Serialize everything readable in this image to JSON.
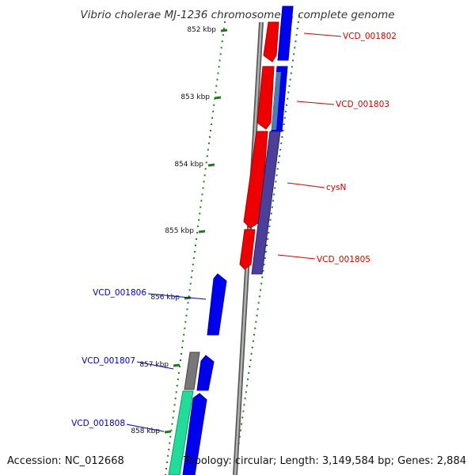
{
  "title": "Vibrio cholerae MJ-1236 chromosome 1, complete genome",
  "footer": {
    "accession": "Accession: NC_012668",
    "summary": "Topology: circular; Length: 3,149,584 bp; Genes: 2,884"
  },
  "ticks": [
    "852 kbp",
    "853 kbp",
    "854 kbp",
    "855 kbp",
    "856 kbp",
    "857 kbp",
    "858 kbp"
  ],
  "gene_labels": [
    {
      "text": "VCD_001802",
      "color": "#cc0000"
    },
    {
      "text": "VCD_001803",
      "color": "#cc0000"
    },
    {
      "text": "cysN",
      "color": "#cc0000"
    },
    {
      "text": "VCD_001805",
      "color": "#cc0000"
    },
    {
      "text": "VCD_001806",
      "color": "#0000bb"
    },
    {
      "text": "VCD_001807",
      "color": "#0000bb"
    },
    {
      "text": "VCD_001808",
      "color": "#0000bb"
    }
  ],
  "colors": {
    "forward_cds": "#ee0000",
    "forward_cds_stroke": "#aa0000",
    "reverse_cds": "#0000ee",
    "reverse_cds_stroke": "#000099",
    "overlap": "#4b3f9a",
    "other_feature": "#777777",
    "rna_feature": "#22dd99",
    "backbone": "#8c8c8c",
    "tick_green": "#1f7a1f",
    "forward_label": "#cc0000",
    "reverse_label": "#0000bb"
  }
}
